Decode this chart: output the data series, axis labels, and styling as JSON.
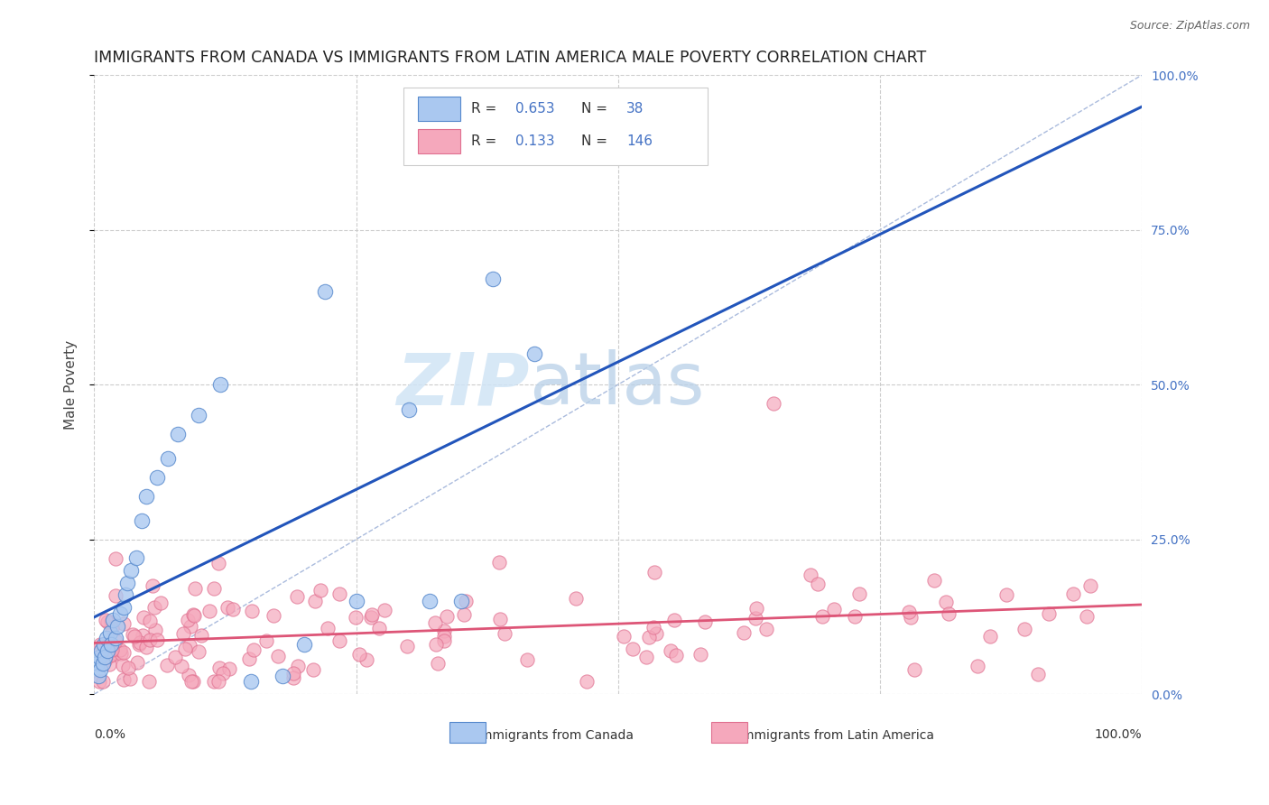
{
  "title": "IMMIGRANTS FROM CANADA VS IMMIGRANTS FROM LATIN AMERICA MALE POVERTY CORRELATION CHART",
  "source": "Source: ZipAtlas.com",
  "ylabel": "Male Poverty",
  "yticks": [
    "0.0%",
    "25.0%",
    "50.0%",
    "75.0%",
    "100.0%"
  ],
  "ytick_vals": [
    0.0,
    0.25,
    0.5,
    0.75,
    1.0
  ],
  "legend_r_canada": "0.653",
  "legend_n_canada": "38",
  "legend_r_latin": "0.133",
  "legend_n_latin": "146",
  "legend_label_canada": "Immigrants from Canada",
  "legend_label_latin": "Immigrants from Latin America",
  "canada_color": "#aac8f0",
  "canada_edge_color": "#5588cc",
  "canada_line_color": "#2255bb",
  "latin_color": "#f5a8bc",
  "latin_edge_color": "#e07090",
  "latin_line_color": "#dd5577",
  "diag_color": "#aabbdd",
  "watermark_zip_color": "#d0e4f5",
  "watermark_atlas_color": "#b8d0e8",
  "background_color": "#ffffff",
  "grid_color": "#cccccc",
  "title_color": "#222222",
  "source_color": "#666666",
  "axis_label_color": "#444444",
  "right_tick_color": "#4472c4"
}
